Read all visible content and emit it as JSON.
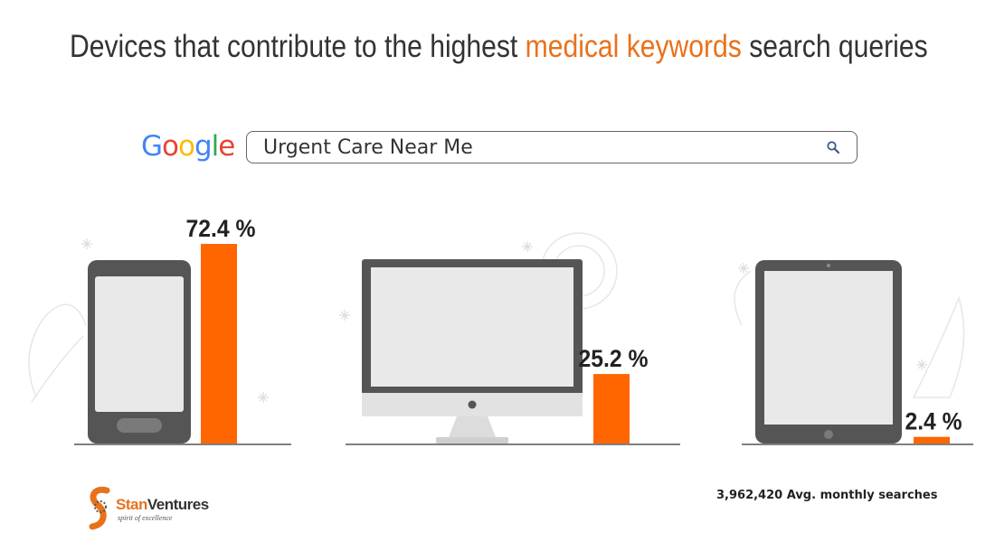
{
  "title": {
    "before": "Devices that contribute to the highest ",
    "highlight": "medical keywords",
    "after": " search queries"
  },
  "search": {
    "logo_letters": [
      "G",
      "o",
      "o",
      "g",
      "l",
      "e"
    ],
    "logo_colors": [
      "#4285F4",
      "#EA4335",
      "#FBBC05",
      "#4285F4",
      "#34A853",
      "#EA4335"
    ],
    "query": "Urgent Care Near Me",
    "icon": "search-icon"
  },
  "chart_data": {
    "type": "bar",
    "categories": [
      "mobile",
      "desktop",
      "tablet"
    ],
    "values": [
      72.4,
      25.2,
      2.4
    ],
    "value_labels": [
      "72.4 %",
      "25.2 %",
      "2.4 %"
    ],
    "category_icons": [
      "smartphone-icon",
      "desktop-monitor-icon",
      "tablet-icon"
    ],
    "ylim": [
      0,
      100
    ],
    "bar_color": "#FF6600",
    "title": "",
    "xlabel": "",
    "ylabel": ""
  },
  "brand": {
    "name_part1": "Stan",
    "name_part2": "Ventures",
    "tagline": "spirit of excellence",
    "accent_color": "#E8721C"
  },
  "footnote": "3,962,420 Avg. monthly searches"
}
